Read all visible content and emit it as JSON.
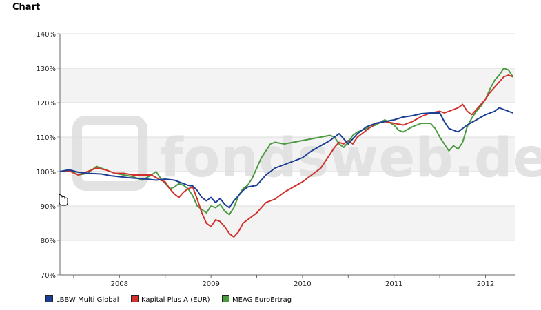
{
  "header": {
    "title": "Chart"
  },
  "watermark": {
    "text": "fondsweb.de"
  },
  "chart_data": {
    "type": "line",
    "title": "",
    "xlabel": "",
    "ylabel": "",
    "x_ticks": [
      {
        "label": "2008",
        "x": 2008.0
      },
      {
        "label": "2009",
        "x": 2009.0
      },
      {
        "label": "2010",
        "x": 2010.0
      },
      {
        "label": "2011",
        "x": 2011.0
      },
      {
        "label": "2012",
        "x": 2012.0
      }
    ],
    "xlim": [
      2007.35,
      2012.32
    ],
    "ylim": [
      70,
      140
    ],
    "y_ticks": [
      {
        "label": "70%",
        "value": 70
      },
      {
        "label": "80%",
        "value": 80
      },
      {
        "label": "90%",
        "value": 90
      },
      {
        "label": "100%",
        "value": 100
      },
      {
        "label": "110%",
        "value": 110
      },
      {
        "label": "120%",
        "value": 120
      },
      {
        "label": "130%",
        "value": 130
      },
      {
        "label": "140%",
        "value": 140
      }
    ],
    "grid": true,
    "legend_position": "bottom",
    "series": [
      {
        "name": "LBBW Multi Global",
        "color": "#1a3f95",
        "points": [
          [
            2007.35,
            100
          ],
          [
            2007.45,
            100.5
          ],
          [
            2007.55,
            99.8
          ],
          [
            2007.65,
            99.5
          ],
          [
            2007.8,
            99.3
          ],
          [
            2007.9,
            98.8
          ],
          [
            2008.0,
            98.5
          ],
          [
            2008.1,
            98.2
          ],
          [
            2008.2,
            98.0
          ],
          [
            2008.3,
            97.8
          ],
          [
            2008.4,
            97.5
          ],
          [
            2008.5,
            97.8
          ],
          [
            2008.6,
            97.5
          ],
          [
            2008.7,
            96.5
          ],
          [
            2008.75,
            96.0
          ],
          [
            2008.8,
            95.8
          ],
          [
            2008.85,
            94.5
          ],
          [
            2008.9,
            92.5
          ],
          [
            2008.95,
            91.5
          ],
          [
            2009.0,
            92.5
          ],
          [
            2009.05,
            91.0
          ],
          [
            2009.1,
            92.2
          ],
          [
            2009.15,
            90.5
          ],
          [
            2009.2,
            89.5
          ],
          [
            2009.25,
            91.5
          ],
          [
            2009.3,
            93.0
          ],
          [
            2009.35,
            94.5
          ],
          [
            2009.4,
            95.5
          ],
          [
            2009.5,
            96.0
          ],
          [
            2009.55,
            97.5
          ],
          [
            2009.6,
            99.0
          ],
          [
            2009.65,
            100.0
          ],
          [
            2009.7,
            101.0
          ],
          [
            2009.75,
            101.5
          ],
          [
            2009.8,
            102.0
          ],
          [
            2009.9,
            103.0
          ],
          [
            2010.0,
            104.0
          ],
          [
            2010.1,
            106.0
          ],
          [
            2010.2,
            107.5
          ],
          [
            2010.3,
            109.0
          ],
          [
            2010.35,
            110.0
          ],
          [
            2010.4,
            111.0
          ],
          [
            2010.45,
            109.5
          ],
          [
            2010.5,
            108.0
          ],
          [
            2010.55,
            109.5
          ],
          [
            2010.6,
            111.0
          ],
          [
            2010.7,
            113.0
          ],
          [
            2010.8,
            114.0
          ],
          [
            2010.9,
            114.5
          ],
          [
            2011.0,
            115.0
          ],
          [
            2011.1,
            115.8
          ],
          [
            2011.2,
            116.2
          ],
          [
            2011.3,
            116.8
          ],
          [
            2011.4,
            117.0
          ],
          [
            2011.5,
            117.0
          ],
          [
            2011.55,
            114.5
          ],
          [
            2011.6,
            112.5
          ],
          [
            2011.65,
            112.0
          ],
          [
            2011.7,
            111.5
          ],
          [
            2011.75,
            112.5
          ],
          [
            2011.8,
            113.5
          ],
          [
            2011.9,
            115.0
          ],
          [
            2012.0,
            116.5
          ],
          [
            2012.1,
            117.5
          ],
          [
            2012.15,
            118.5
          ],
          [
            2012.2,
            118.0
          ],
          [
            2012.25,
            117.5
          ],
          [
            2012.3,
            117.0
          ]
        ]
      },
      {
        "name": "Kapital Plus A (EUR)",
        "color": "#d0322b",
        "points": [
          [
            2007.35,
            100
          ],
          [
            2007.45,
            100.2
          ],
          [
            2007.55,
            99.0
          ],
          [
            2007.65,
            100.0
          ],
          [
            2007.75,
            101.0
          ],
          [
            2007.85,
            100.5
          ],
          [
            2007.95,
            99.5
          ],
          [
            2008.05,
            99.5
          ],
          [
            2008.15,
            99.0
          ],
          [
            2008.25,
            99.0
          ],
          [
            2008.35,
            99.0
          ],
          [
            2008.45,
            97.5
          ],
          [
            2008.5,
            97.0
          ],
          [
            2008.55,
            95.0
          ],
          [
            2008.6,
            93.5
          ],
          [
            2008.65,
            92.5
          ],
          [
            2008.7,
            94.0
          ],
          [
            2008.75,
            95.0
          ],
          [
            2008.8,
            95.5
          ],
          [
            2008.85,
            92.0
          ],
          [
            2008.9,
            88.0
          ],
          [
            2008.95,
            85.0
          ],
          [
            2009.0,
            84.0
          ],
          [
            2009.05,
            86.0
          ],
          [
            2009.1,
            85.5
          ],
          [
            2009.15,
            84.0
          ],
          [
            2009.2,
            82.0
          ],
          [
            2009.25,
            81.0
          ],
          [
            2009.3,
            82.5
          ],
          [
            2009.35,
            85.0
          ],
          [
            2009.4,
            86.0
          ],
          [
            2009.45,
            87.0
          ],
          [
            2009.5,
            88.0
          ],
          [
            2009.55,
            89.5
          ],
          [
            2009.6,
            91.0
          ],
          [
            2009.7,
            92.0
          ],
          [
            2009.8,
            94.0
          ],
          [
            2009.9,
            95.5
          ],
          [
            2010.0,
            97.0
          ],
          [
            2010.1,
            99.0
          ],
          [
            2010.2,
            101.0
          ],
          [
            2010.25,
            103.0
          ],
          [
            2010.3,
            105.0
          ],
          [
            2010.35,
            107.0
          ],
          [
            2010.4,
            108.5
          ],
          [
            2010.45,
            108.0
          ],
          [
            2010.5,
            109.0
          ],
          [
            2010.55,
            108.0
          ],
          [
            2010.6,
            110.0
          ],
          [
            2010.7,
            112.0
          ],
          [
            2010.8,
            114.0
          ],
          [
            2010.9,
            114.5
          ],
          [
            2011.0,
            114.0
          ],
          [
            2011.1,
            113.5
          ],
          [
            2011.2,
            114.5
          ],
          [
            2011.3,
            116.0
          ],
          [
            2011.4,
            117.0
          ],
          [
            2011.5,
            117.5
          ],
          [
            2011.55,
            117.0
          ],
          [
            2011.6,
            117.5
          ],
          [
            2011.7,
            118.5
          ],
          [
            2011.75,
            119.5
          ],
          [
            2011.8,
            117.5
          ],
          [
            2011.85,
            116.5
          ],
          [
            2011.9,
            118.0
          ],
          [
            2011.95,
            119.5
          ],
          [
            2012.0,
            121.0
          ],
          [
            2012.05,
            123.0
          ],
          [
            2012.1,
            124.5
          ],
          [
            2012.15,
            126.0
          ],
          [
            2012.2,
            127.5
          ],
          [
            2012.25,
            128.0
          ],
          [
            2012.3,
            127.5
          ]
        ]
      },
      {
        "name": "MEAG EuroErtrag",
        "color": "#4a9a3f",
        "points": [
          [
            2007.35,
            100
          ],
          [
            2007.45,
            100.5
          ],
          [
            2007.55,
            99.0
          ],
          [
            2007.65,
            99.5
          ],
          [
            2007.75,
            101.5
          ],
          [
            2007.85,
            100.5
          ],
          [
            2007.95,
            99.5
          ],
          [
            2008.05,
            99.0
          ],
          [
            2008.15,
            98.5
          ],
          [
            2008.25,
            97.5
          ],
          [
            2008.35,
            99.0
          ],
          [
            2008.4,
            100.0
          ],
          [
            2008.45,
            98.0
          ],
          [
            2008.5,
            96.5
          ],
          [
            2008.55,
            95.0
          ],
          [
            2008.6,
            95.5
          ],
          [
            2008.65,
            96.5
          ],
          [
            2008.7,
            96.0
          ],
          [
            2008.75,
            95.0
          ],
          [
            2008.8,
            93.0
          ],
          [
            2008.85,
            90.0
          ],
          [
            2008.9,
            89.0
          ],
          [
            2008.95,
            88.0
          ],
          [
            2009.0,
            90.0
          ],
          [
            2009.05,
            89.5
          ],
          [
            2009.1,
            90.5
          ],
          [
            2009.15,
            88.5
          ],
          [
            2009.2,
            87.5
          ],
          [
            2009.25,
            89.5
          ],
          [
            2009.3,
            93.0
          ],
          [
            2009.35,
            95.0
          ],
          [
            2009.4,
            96.0
          ],
          [
            2009.45,
            98.0
          ],
          [
            2009.5,
            101.0
          ],
          [
            2009.55,
            104.0
          ],
          [
            2009.6,
            106.0
          ],
          [
            2009.65,
            108.0
          ],
          [
            2009.7,
            108.5
          ],
          [
            2009.8,
            108.0
          ],
          [
            2009.9,
            108.5
          ],
          [
            2010.0,
            109.0
          ],
          [
            2010.1,
            109.5
          ],
          [
            2010.2,
            110.0
          ],
          [
            2010.3,
            110.5
          ],
          [
            2010.35,
            110.0
          ],
          [
            2010.4,
            108.0
          ],
          [
            2010.45,
            107.0
          ],
          [
            2010.5,
            108.5
          ],
          [
            2010.55,
            110.5
          ],
          [
            2010.6,
            111.5
          ],
          [
            2010.7,
            112.5
          ],
          [
            2010.8,
            113.5
          ],
          [
            2010.9,
            115.0
          ],
          [
            2011.0,
            113.5
          ],
          [
            2011.05,
            112.0
          ],
          [
            2011.1,
            111.5
          ],
          [
            2011.2,
            113.0
          ],
          [
            2011.3,
            114.0
          ],
          [
            2011.4,
            114.0
          ],
          [
            2011.45,
            112.5
          ],
          [
            2011.5,
            110.0
          ],
          [
            2011.55,
            108.0
          ],
          [
            2011.6,
            106.0
          ],
          [
            2011.65,
            107.5
          ],
          [
            2011.7,
            106.5
          ],
          [
            2011.75,
            108.5
          ],
          [
            2011.8,
            113.0
          ],
          [
            2011.85,
            115.5
          ],
          [
            2011.9,
            117.5
          ],
          [
            2011.95,
            119.0
          ],
          [
            2012.0,
            121.0
          ],
          [
            2012.05,
            124.0
          ],
          [
            2012.1,
            126.5
          ],
          [
            2012.15,
            128.0
          ],
          [
            2012.2,
            130.0
          ],
          [
            2012.25,
            129.5
          ],
          [
            2012.3,
            127.5
          ]
        ]
      }
    ]
  }
}
